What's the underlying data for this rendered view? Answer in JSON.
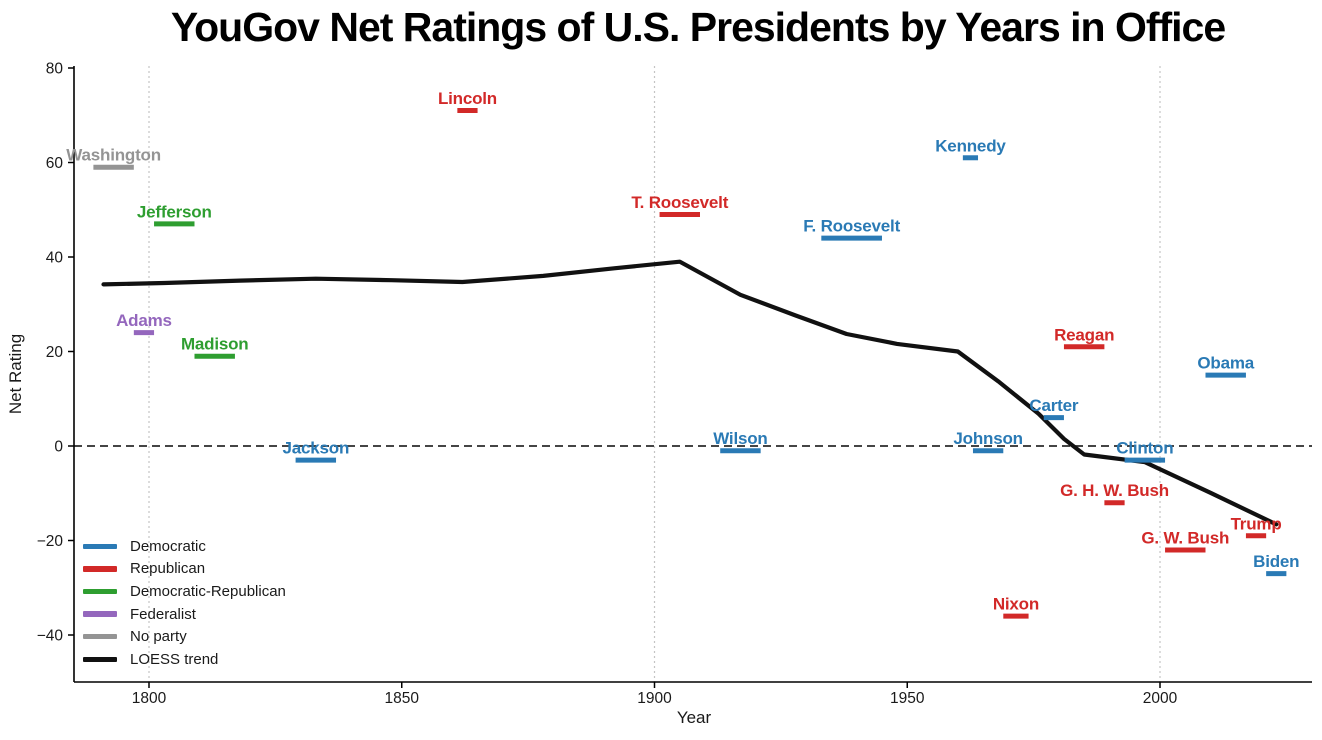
{
  "title": "YouGov Net Ratings of U.S. Presidents by Years in Office",
  "axes": {
    "x_label": "Year",
    "y_label": "Net Rating",
    "x_ticks": [
      1800,
      1850,
      1900,
      1950,
      2000
    ],
    "y_ticks": [
      80,
      60,
      40,
      20,
      0,
      -20,
      -40
    ],
    "x_gridlines": [
      1800,
      1900,
      2000
    ],
    "zero_reference_line": 0
  },
  "party_colors": {
    "Democratic": "#2a7ab5",
    "Republican": "#d22928",
    "Democratic-Republican": "#2e9e30",
    "Federalist": "#9467bd",
    "No party": "#949494",
    "LOESS trend": "#111111"
  },
  "legend": {
    "items": [
      {
        "label": "Democratic",
        "color": "#2a7ab5"
      },
      {
        "label": "Republican",
        "color": "#d22928"
      },
      {
        "label": "Democratic-Republican",
        "color": "#2e9e30"
      },
      {
        "label": "Federalist",
        "color": "#9467bd"
      },
      {
        "label": "No party",
        "color": "#949494"
      },
      {
        "label": "LOESS trend",
        "color": "#111111"
      }
    ]
  },
  "chart_data": {
    "type": "scatter",
    "title": "YouGov Net Ratings of U.S. Presidents by Years in Office",
    "xlabel": "Year",
    "ylabel": "Net Rating",
    "xlim": [
      1785,
      2030
    ],
    "ylim": [
      -50,
      80
    ],
    "grid": "vertical-dotted-at-1800-1900-2000",
    "legend_position": "lower-left",
    "note": "Each president is drawn as a horizontal segment spanning term years at his net rating, with a name label above; dashed horizontal line at 0.",
    "presidents": [
      {
        "name": "Washington",
        "party": "No party",
        "start": 1789,
        "end": 1797,
        "rating": 59
      },
      {
        "name": "Adams",
        "party": "Federalist",
        "start": 1797,
        "end": 1801,
        "rating": 24
      },
      {
        "name": "Jefferson",
        "party": "Democratic-Republican",
        "start": 1801,
        "end": 1809,
        "rating": 47
      },
      {
        "name": "Madison",
        "party": "Democratic-Republican",
        "start": 1809,
        "end": 1817,
        "rating": 19
      },
      {
        "name": "Jackson",
        "party": "Democratic",
        "start": 1829,
        "end": 1837,
        "rating": -3
      },
      {
        "name": "Lincoln",
        "party": "Republican",
        "start": 1861,
        "end": 1865,
        "rating": 71
      },
      {
        "name": "T. Roosevelt",
        "party": "Republican",
        "start": 1901,
        "end": 1909,
        "rating": 49
      },
      {
        "name": "Wilson",
        "party": "Democratic",
        "start": 1913,
        "end": 1921,
        "rating": -1
      },
      {
        "name": "F. Roosevelt",
        "party": "Democratic",
        "start": 1933,
        "end": 1945,
        "rating": 44
      },
      {
        "name": "Kennedy",
        "party": "Democratic",
        "start": 1961,
        "end": 1964,
        "rating": 61
      },
      {
        "name": "Johnson",
        "party": "Democratic",
        "start": 1963,
        "end": 1969,
        "rating": -1
      },
      {
        "name": "Nixon",
        "party": "Republican",
        "start": 1969,
        "end": 1974,
        "rating": -36
      },
      {
        "name": "Carter",
        "party": "Democratic",
        "start": 1977,
        "end": 1981,
        "rating": 6
      },
      {
        "name": "Reagan",
        "party": "Republican",
        "start": 1981,
        "end": 1989,
        "rating": 21
      },
      {
        "name": "G. H. W. Bush",
        "party": "Republican",
        "start": 1989,
        "end": 1993,
        "rating": -12
      },
      {
        "name": "Clinton",
        "party": "Democratic",
        "start": 1993,
        "end": 2001,
        "rating": -3
      },
      {
        "name": "G. W. Bush",
        "party": "Republican",
        "start": 2001,
        "end": 2009,
        "rating": -22
      },
      {
        "name": "Obama",
        "party": "Democratic",
        "start": 2009,
        "end": 2017,
        "rating": 15
      },
      {
        "name": "Trump",
        "party": "Republican",
        "start": 2017,
        "end": 2021,
        "rating": -19
      },
      {
        "name": "Biden",
        "party": "Democratic",
        "start": 2021,
        "end": 2025,
        "rating": -27
      }
    ],
    "series": [
      {
        "name": "LOESS trend",
        "type": "line",
        "color": "#111111",
        "points": [
          [
            1791,
            34.2
          ],
          [
            1803,
            34.5
          ],
          [
            1818,
            35.0
          ],
          [
            1833,
            35.4
          ],
          [
            1848,
            35.1
          ],
          [
            1862,
            34.7
          ],
          [
            1878,
            36.0
          ],
          [
            1892,
            37.6
          ],
          [
            1905,
            39.0
          ],
          [
            1917,
            32.0
          ],
          [
            1928,
            27.6
          ],
          [
            1938,
            23.7
          ],
          [
            1948,
            21.6
          ],
          [
            1960,
            20.0
          ],
          [
            1968,
            13.7
          ],
          [
            1976,
            6.8
          ],
          [
            1981,
            1.5
          ],
          [
            1985,
            -1.8
          ],
          [
            1997,
            -3.4
          ],
          [
            2010,
            -9.9
          ],
          [
            2023,
            -16.6
          ]
        ]
      }
    ]
  }
}
